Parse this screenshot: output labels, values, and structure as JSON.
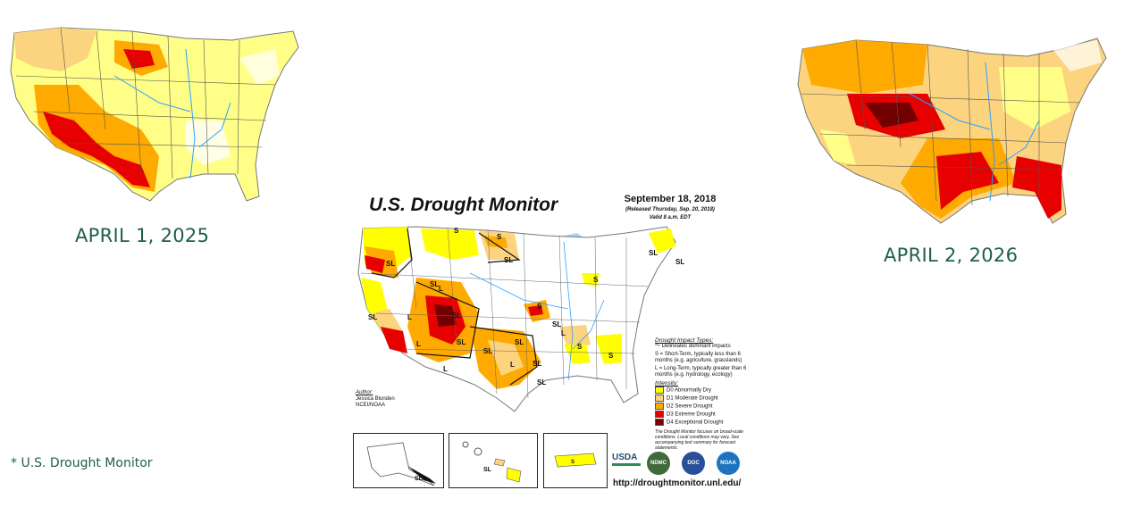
{
  "left_map": {
    "caption": "APRIL 1, 2025"
  },
  "right_map": {
    "caption": "APRIL 2, 2026"
  },
  "footnote": "* U.S. Drought Monitor",
  "center_map": {
    "title": "U.S. Drought Monitor",
    "date": "September 18, 2018",
    "released": "(Released Thursday, Sep. 20, 2018)",
    "valid": "Valid 8 a.m. EDT",
    "author_label": "Author:",
    "author_name": "Jessica Blunden",
    "author_org": "NCEI/NOAA",
    "impact_title": "Drought Impact Types:",
    "impact_delineates": "Delineates dominant impacts",
    "impact_s": "S = Short-Term, typically less than 6 months (e.g. agriculture, grasslands)",
    "impact_l": "L = Long-Term, typically greater than 6 months (e.g. hydrology, ecology)",
    "intensity_title": "Intensity:",
    "intensity": [
      {
        "label": "D0 Abnormally Dry",
        "color": "#ffff00"
      },
      {
        "label": "D1 Moderate Drought",
        "color": "#fcd37f"
      },
      {
        "label": "D2 Severe Drought",
        "color": "#ffaa00"
      },
      {
        "label": "D3 Extreme Drought",
        "color": "#e60000"
      },
      {
        "label": "D4 Exceptional Drought",
        "color": "#730000"
      }
    ],
    "note": "The Drought Monitor focuses on broad-scale conditions. Local conditions may vary. See accompanying text summary for forecast statements.",
    "url": "http://droughtmonitor.unl.edu/",
    "logos": [
      "USDA",
      "NDMC",
      "DOC",
      "NOAA"
    ],
    "map_labels": [
      "S",
      "S",
      "SL",
      "SL",
      "SL",
      "SL",
      "L",
      "L",
      "SL",
      "L",
      "SL",
      "SL",
      "S",
      "S",
      "L",
      "L",
      "SL",
      "S",
      "SL",
      "SL",
      "SL",
      "SL",
      "SL",
      "L",
      "SL"
    ]
  }
}
